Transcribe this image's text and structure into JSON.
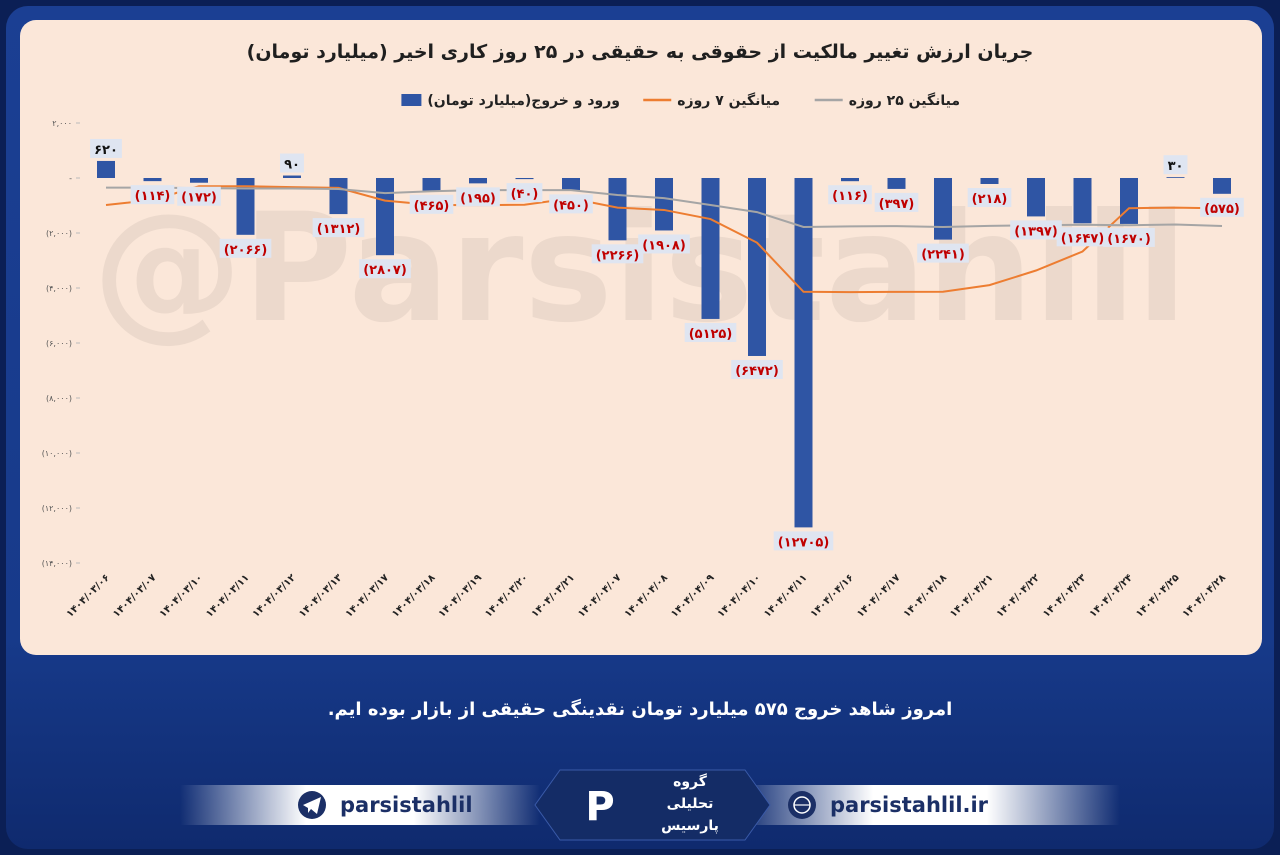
{
  "chart_data": {
    "type": "combo",
    "title": "جریان ارزش تغییر مالکیت از حقوقی به حقیقی در ۲۵ روز کاری اخیر (میلیارد تومان)",
    "categories": [
      "۱۴۰۴/۰۳/۰۶",
      "۱۴۰۴/۰۳/۰۷",
      "۱۴۰۴/۰۳/۱۰",
      "۱۴۰۴/۰۳/۱۱",
      "۱۴۰۴/۰۳/۱۲",
      "۱۴۰۴/۰۳/۱۳",
      "۱۴۰۴/۰۳/۱۷",
      "۱۴۰۴/۰۳/۱۸",
      "۱۴۰۴/۰۳/۱۹",
      "۱۴۰۴/۰۳/۲۰",
      "۱۴۰۴/۰۳/۲۱",
      "۱۴۰۴/۰۴/۰۷",
      "۱۴۰۴/۰۴/۰۸",
      "۱۴۰۴/۰۴/۰۹",
      "۱۴۰۴/۰۴/۱۰",
      "۱۴۰۴/۰۴/۱۱",
      "۱۴۰۴/۰۴/۱۶",
      "۱۴۰۴/۰۴/۱۷",
      "۱۴۰۴/۰۴/۱۸",
      "۱۴۰۴/۰۴/۲۱",
      "۱۴۰۴/۰۴/۲۲",
      "۱۴۰۴/۰۴/۲۳",
      "۱۴۰۴/۰۴/۲۴",
      "۱۴۰۴/۰۴/۲۵",
      "۱۴۰۴/۰۴/۲۸"
    ],
    "series": [
      {
        "name": "ورود و خروج(میلیارد تومان)",
        "type": "bar",
        "color": "#2f55a4",
        "values": [
          620,
          -114,
          -172,
          -2066,
          90,
          -1312,
          -2807,
          -465,
          -195,
          -40,
          -450,
          -2266,
          -1908,
          -5125,
          -6472,
          -12705,
          -116,
          -397,
          -2241,
          -218,
          -1397,
          -1647,
          -1670,
          30,
          -575
        ],
        "value_labels": [
          "۶۲۰",
          "(۱۱۴)",
          "(۱۷۲)",
          "(۲۰۶۶)",
          "۹۰",
          "(۱۳۱۲)",
          "(۲۸۰۷)",
          "(۴۶۵)",
          "(۱۹۵)",
          "(۴۰)",
          "(۴۵۰)",
          "(۲۲۶۶)",
          "(۱۹۰۸)",
          "(۵۱۲۵)",
          "(۶۴۷۲)",
          "(۱۲۷۰۵)",
          "(۱۱۶)",
          "(۳۹۷)",
          "(۲۲۴۱)",
          "(۲۱۸)",
          "(۱۳۹۷)",
          "(۱۶۴۷)",
          "(۱۶۷۰)",
          "۳۰",
          "(۵۷۵)"
        ]
      },
      {
        "name": "میانگین ۷ روزه",
        "type": "line",
        "color": "#ed7d31",
        "values": [
          -980,
          -800,
          -300,
          -300,
          -330,
          -360,
          -823,
          -978,
          -990,
          -971,
          -740,
          -1076,
          -1162,
          -1493,
          -2351,
          -4138,
          -4149,
          -4141,
          -4138,
          -3896,
          -3364,
          -2674,
          -1098,
          -1077,
          -1103
        ]
      },
      {
        "name": "میانگین ۲۵ روزه",
        "type": "line",
        "color": "#a5a5a5",
        "values": [
          -350,
          -350,
          -370,
          -380,
          -380,
          -400,
          -550,
          -480,
          -440,
          -440,
          -440,
          -620,
          -730,
          -980,
          -1240,
          -1780,
          -1760,
          -1750,
          -1780,
          -1740,
          -1720,
          -1700,
          -1720,
          -1690,
          -1745
        ]
      }
    ],
    "ylim": [
      -14000,
      2000
    ],
    "yticks": [
      {
        "value": 2000,
        "label": "۲,۰۰۰"
      },
      {
        "value": 0,
        "label": "-"
      },
      {
        "value": -2000,
        "label": "(۲,۰۰۰)"
      },
      {
        "value": -4000,
        "label": "(۴,۰۰۰)"
      },
      {
        "value": -6000,
        "label": "(۶,۰۰۰)"
      },
      {
        "value": -8000,
        "label": "(۸,۰۰۰)"
      },
      {
        "value": -10000,
        "label": "(۱۰,۰۰۰)"
      },
      {
        "value": -12000,
        "label": "(۱۲,۰۰۰)"
      },
      {
        "value": -14000,
        "label": "(۱۴,۰۰۰)"
      }
    ],
    "grid": false
  },
  "watermark": "@Parsistahlil",
  "caption": "امروز شاهد خروج ۵۷۵ میلیارد تومان نقدینگی حقیقی از بازار بوده ایم.",
  "footer": {
    "telegram": "parsistahlil",
    "website": "parsistahlil.ir",
    "logo_lines": [
      "گروه",
      "تحلیلی",
      "پارسیس"
    ]
  }
}
